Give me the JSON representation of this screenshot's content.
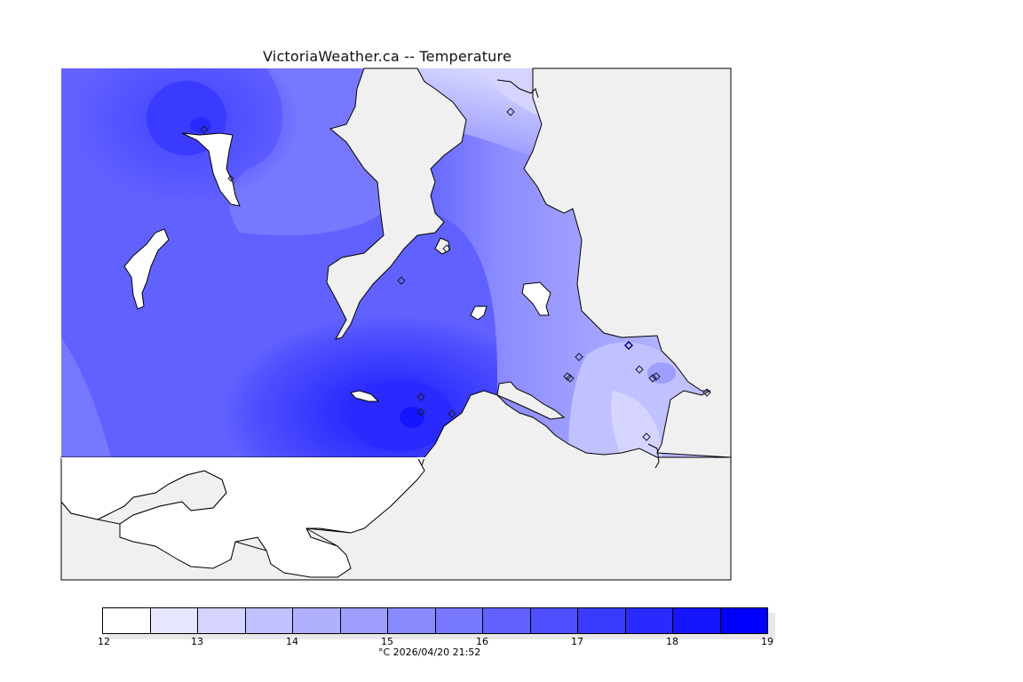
{
  "title": "VictoriaWeather.ca -- Temperature",
  "legend": {
    "colors": [
      "#ffffff",
      "#e6e6ff",
      "#d4d4ff",
      "#c1c1ff",
      "#b0b0ff",
      "#9e9eff",
      "#8a8aff",
      "#7878ff",
      "#6161ff",
      "#4f4fff",
      "#3b3bff",
      "#2a2aff",
      "#1515ff",
      "#0000ff"
    ],
    "ticks": [
      "12",
      "13",
      "14",
      "15",
      "16",
      "17",
      "18",
      "19"
    ],
    "caption": "°C  2026/04/20 21:52"
  },
  "colors": {
    "background": "#f0f0f0",
    "coastline": "#000000",
    "station_marker": "#1a1a2e"
  }
}
